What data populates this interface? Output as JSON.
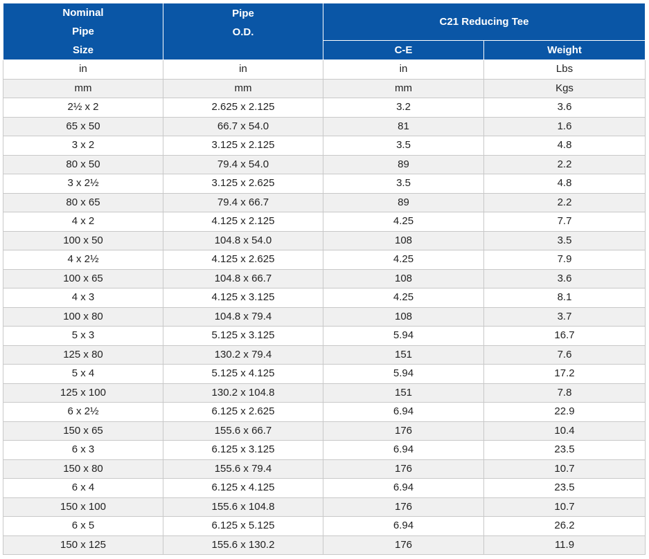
{
  "header": {
    "nominal_lines": [
      "Nominal",
      "Pipe",
      "Size"
    ],
    "pipe_od_lines": [
      "Pipe",
      "O.D."
    ],
    "group_title": "C21 Reducing Tee",
    "ce_label": "C-E",
    "weight_label": "Weight"
  },
  "rows": [
    [
      "in",
      "in",
      "in",
      "Lbs"
    ],
    [
      "mm",
      "mm",
      "mm",
      "Kgs"
    ],
    [
      "2½ x 2",
      "2.625 x 2.125",
      "3.2",
      "3.6"
    ],
    [
      "65 x 50",
      "66.7 x 54.0",
      "81",
      "1.6"
    ],
    [
      "3 x 2",
      "3.125 x 2.125",
      "3.5",
      "4.8"
    ],
    [
      "80 x 50",
      "79.4 x 54.0",
      "89",
      "2.2"
    ],
    [
      "3 x 2½",
      "3.125 x 2.625",
      "3.5",
      "4.8"
    ],
    [
      "80 x 65",
      "79.4 x 66.7",
      "89",
      "2.2"
    ],
    [
      "4 x 2",
      "4.125 x 2.125",
      "4.25",
      "7.7"
    ],
    [
      "100 x 50",
      "104.8 x 54.0",
      "108",
      "3.5"
    ],
    [
      "4 x 2½",
      "4.125 x 2.625",
      "4.25",
      "7.9"
    ],
    [
      "100 x 65",
      "104.8 x 66.7",
      "108",
      "3.6"
    ],
    [
      "4 x 3",
      "4.125 x 3.125",
      "4.25",
      "8.1"
    ],
    [
      "100 x 80",
      "104.8 x 79.4",
      "108",
      "3.7"
    ],
    [
      "5 x 3",
      "5.125 x 3.125",
      "5.94",
      "16.7"
    ],
    [
      "125 x 80",
      "130.2 x 79.4",
      "151",
      "7.6"
    ],
    [
      "5 x 4",
      "5.125 x 4.125",
      "5.94",
      "17.2"
    ],
    [
      "125 x 100",
      "130.2 x 104.8",
      "151",
      "7.8"
    ],
    [
      "6 x 2½",
      "6.125 x 2.625",
      "6.94",
      "22.9"
    ],
    [
      "150 x 65",
      "155.6 x 66.7",
      "176",
      "10.4"
    ],
    [
      "6 x 3",
      "6.125 x 3.125",
      "6.94",
      "23.5"
    ],
    [
      "150 x 80",
      "155.6 x 79.4",
      "176",
      "10.7"
    ],
    [
      "6 x 4",
      "6.125 x 4.125",
      "6.94",
      "23.5"
    ],
    [
      "150 x 100",
      "155.6 x 104.8",
      "176",
      "10.7"
    ],
    [
      "6 x 5",
      "6.125 x 5.125",
      "6.94",
      "26.2"
    ],
    [
      "150 x 125",
      "155.6 x 130.2",
      "176",
      "11.9"
    ]
  ]
}
